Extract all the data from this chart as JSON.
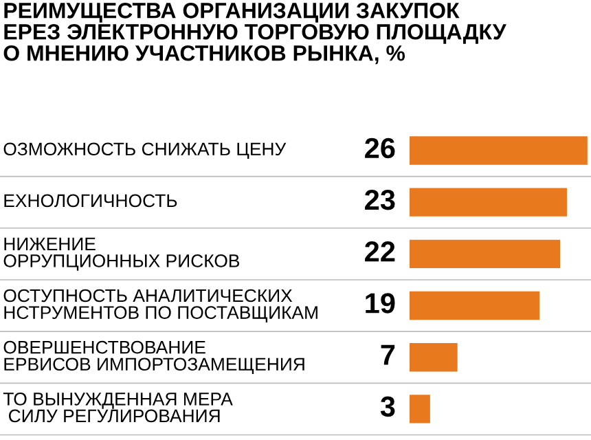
{
  "chart_data": {
    "type": "bar",
    "orientation": "horizontal",
    "title": "РЕИМУЩЕСТВА ОРГАНИЗАЦИИ ЗАКУПОК\nЕРЕЗ ЭЛЕКТРОННУЮ ТОРГОВУЮ ПЛОЩАДКУ\nО МНЕНИЮ УЧАСТНИКОВ РЫНКА, %",
    "categories": [
      "ОЗМОЖНОСТЬ СНИЖАТЬ ЦЕНУ",
      "ЕХНОЛОГИЧНОСТЬ",
      "НИЖЕНИЕ\nОРРУПЦИОННЫХ РИСКОВ",
      "ОСТУПНОСТЬ АНАЛИТИЧЕСКИХ\nНСТРУМЕНТОВ ПО ПОСТАВЩИКАМ",
      "ОВЕРШЕНСТВОВАНИЕ\nЕРВИСОВ ИМПОРТОЗАМЕЩЕНИЯ",
      "ТО ВЫНУЖДЕННАЯ МЕРА\n СИЛУ РЕГУЛИРОВАНИЯ"
    ],
    "values": [
      26,
      23,
      22,
      19,
      7,
      3
    ],
    "color": "#e8791e",
    "data_labels": true
  }
}
